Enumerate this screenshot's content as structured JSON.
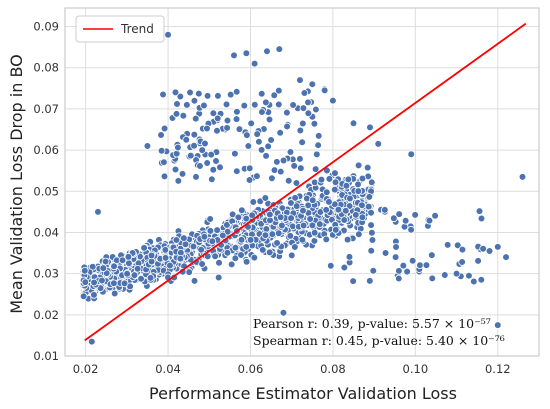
{
  "chart_data": {
    "type": "scatter",
    "xlabel": "Performance Estimator Validation Loss",
    "ylabel": "Mean Validation Loss Drop in BO",
    "xlim": [
      0.015,
      0.13
    ],
    "ylim": [
      0.01,
      0.0945
    ],
    "x_ticks": [
      0.02,
      0.04,
      0.06,
      0.08,
      0.1,
      0.12
    ],
    "x_tick_labels": [
      "0.02",
      "0.04",
      "0.06",
      "0.08",
      "0.10",
      "0.12"
    ],
    "y_ticks": [
      0.01,
      0.02,
      0.03,
      0.04,
      0.05,
      0.06,
      0.07,
      0.08,
      0.09
    ],
    "y_tick_labels": [
      "0.01",
      "0.02",
      "0.03",
      "0.04",
      "0.05",
      "0.06",
      "0.07",
      "0.08",
      "0.09"
    ],
    "grid": true,
    "legend": {
      "placement": "top-left",
      "entries": [
        "Trend"
      ]
    },
    "trend": {
      "name": "Trend",
      "color": "#ff0000",
      "x": [
        0.0198,
        0.1268
      ],
      "y": [
        0.0138,
        0.0907
      ]
    },
    "point_color": "#4c72b0",
    "points_outlier_sample": [
      [
        0.04,
        0.088
      ],
      [
        0.064,
        0.084
      ],
      [
        0.067,
        0.0845
      ],
      [
        0.059,
        0.0835
      ],
      [
        0.056,
        0.083
      ],
      [
        0.061,
        0.081
      ],
      [
        0.072,
        0.077
      ],
      [
        0.075,
        0.076
      ],
      [
        0.078,
        0.0745
      ],
      [
        0.08,
        0.072
      ],
      [
        0.085,
        0.0665
      ],
      [
        0.089,
        0.0655
      ],
      [
        0.091,
        0.0615
      ],
      [
        0.099,
        0.059
      ],
      [
        0.126,
        0.0535
      ],
      [
        0.12,
        0.0365
      ],
      [
        0.122,
        0.034
      ],
      [
        0.118,
        0.0355
      ],
      [
        0.113,
        0.0295
      ],
      [
        0.116,
        0.0285
      ],
      [
        0.11,
        0.03
      ],
      [
        0.104,
        0.0345
      ],
      [
        0.098,
        0.0305
      ],
      [
        0.12,
        0.0175
      ],
      [
        0.068,
        0.0205
      ],
      [
        0.0215,
        0.0135
      ],
      [
        0.023,
        0.045
      ],
      [
        0.035,
        0.061
      ]
    ],
    "annotations": [
      "Pearson r: 0.39,  p-value: 5.57 × 10⁻⁵⁷",
      "Spearman r: 0.45,  p-value: 5.40 × 10⁻⁷⁶"
    ]
  }
}
